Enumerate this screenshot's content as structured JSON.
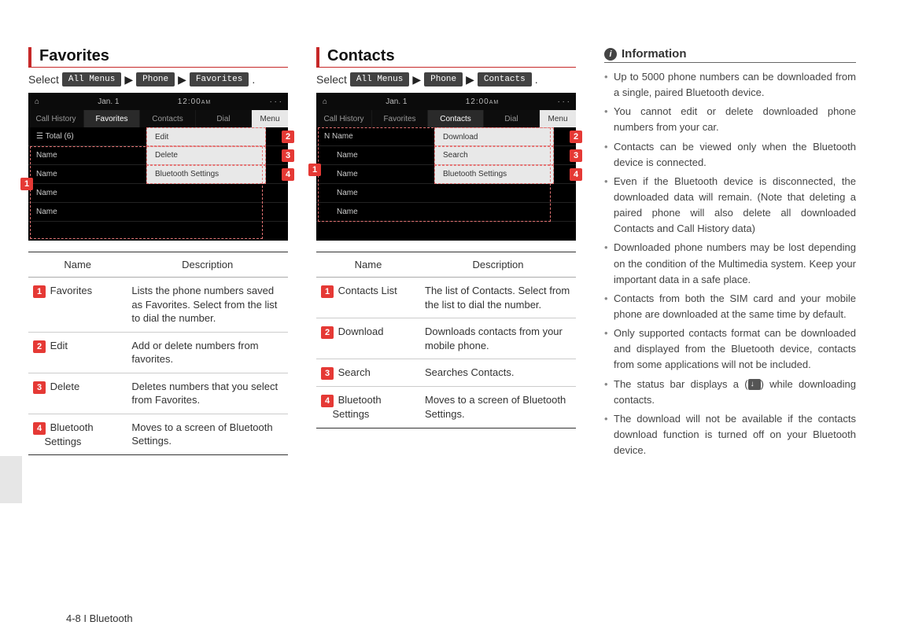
{
  "accent_color": "#c62828",
  "badge_color": "#e53935",
  "footer": "4-8 I Bluetooth",
  "select_label": "Select",
  "breadcrumb_buttons": {
    "all_menus": "All Menus",
    "phone": "Phone",
    "favorites": "Favorites",
    "contacts": "Contacts"
  },
  "favorites": {
    "heading": "Favorites",
    "mock": {
      "date": "Jan. 1",
      "time": "12:00",
      "ampm": "AM",
      "tabs": [
        "Call History",
        "Favorites",
        "Contacts",
        "Dial"
      ],
      "active_tab": 1,
      "menu_label": "Menu",
      "total_row": "☰  Total (6)",
      "rows": [
        "Name",
        "Name",
        "Name",
        "Name"
      ],
      "dropdown": [
        "Edit",
        "Delete",
        "Bluetooth Settings"
      ]
    },
    "table": {
      "head": [
        "Name",
        "Description"
      ],
      "rows": [
        {
          "num": "1",
          "name": "Favorites",
          "desc": "Lists the phone numbers saved as Favorites. Select from the list to dial the number."
        },
        {
          "num": "2",
          "name": "Edit",
          "desc": "Add or delete numbers from favorites."
        },
        {
          "num": "3",
          "name": "Delete",
          "desc": "Deletes numbers that you select from Favorites."
        },
        {
          "num": "4",
          "name": "Bluetooth Settings",
          "name2": "Settings",
          "desc": "Moves to a screen of Bluetooth Settings."
        }
      ]
    }
  },
  "contacts": {
    "heading": "Contacts",
    "mock": {
      "date": "Jan. 1",
      "time": "12:00",
      "ampm": "AM",
      "tabs": [
        "Call History",
        "Favorites",
        "Contacts",
        "Dial"
      ],
      "active_tab": 2,
      "menu_label": "Menu",
      "first_row": "N   Name",
      "rows": [
        "Name",
        "Name",
        "Name",
        "Name"
      ],
      "dropdown": [
        "Download",
        "Search",
        "Bluetooth Settings"
      ]
    },
    "table": {
      "head": [
        "Name",
        "Description"
      ],
      "rows": [
        {
          "num": "1",
          "name": "Contacts List",
          "desc": "The list of Contacts. Select from the list to dial the number."
        },
        {
          "num": "2",
          "name": "Download",
          "desc": "Downloads contacts from your mobile phone."
        },
        {
          "num": "3",
          "name": "Search",
          "desc": "Searches Contacts."
        },
        {
          "num": "4",
          "name": "Bluetooth Settings",
          "name2": "Settings",
          "desc": "Moves to a screen of Bluetooth Settings."
        }
      ]
    }
  },
  "information": {
    "heading": "Information",
    "bullets": [
      "Up to 5000 phone numbers can be downloaded from a single, paired Bluetooth device.",
      "You cannot edit or delete downloaded phone numbers from your car.",
      "Contacts can be viewed only when the Bluetooth device is connected.",
      "Even if the Bluetooth device is disconnected, the downloaded data will remain. (Note that deleting a paired phone will also delete all downloaded Contacts and Call History data)",
      "Downloaded phone numbers may be lost depending on the condition of the Multimedia system. Keep your important data in a safe place.",
      "Contacts from both the SIM card and your mobile phone are downloaded at the same time by default.",
      "Only supported contacts format can be downloaded and displayed from the Bluetooth device, contacts from some applications will not be included.",
      "__STATUS_ICON__",
      "The download will not be available if the contacts download function is turned off on your Bluetooth device."
    ],
    "status_line_pre": "The status bar displays a (",
    "status_line_post": ") while downloading contacts."
  }
}
